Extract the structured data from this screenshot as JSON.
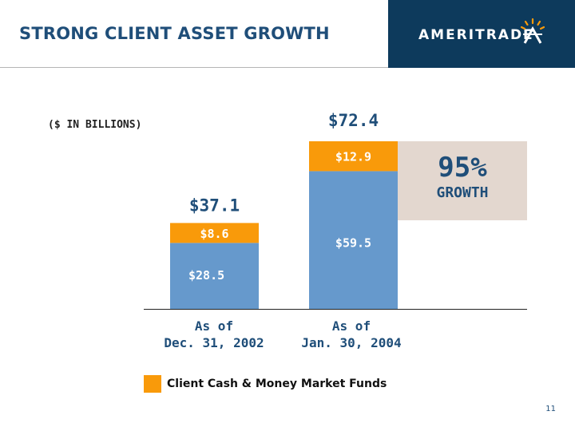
{
  "header": {
    "title": "STRONG CLIENT ASSET GROWTH",
    "logo_text": "AMERITRADE",
    "logo_color": "#0d3a5c"
  },
  "units_note": "($ IN BILLIONS)",
  "growth": {
    "value": "95%",
    "label": "GROWTH",
    "box_color": "#e3d7cf"
  },
  "legend": {
    "label": "Client Cash & Money Market Funds",
    "color": "#f99a0a"
  },
  "page_number": "11",
  "chart_data": {
    "type": "bar",
    "stacked": true,
    "categories": [
      "As of\nDec. 31, 2002",
      "As of\nJan. 30, 2004"
    ],
    "category_lines": [
      [
        "As of",
        "Dec. 31, 2002"
      ],
      [
        "As of",
        "Jan. 30, 2004"
      ]
    ],
    "totals": [
      37.1,
      72.4
    ],
    "total_labels": [
      "$37.1",
      "$72.4"
    ],
    "series": [
      {
        "values": [
          28.5,
          59.5
        ],
        "labels": [
          "$28.5",
          "$59.5"
        ],
        "color": "#6699cc"
      },
      {
        "name": "Client Cash & Money Market Funds",
        "values": [
          8.6,
          12.9
        ],
        "labels": [
          "$8.6",
          "$12.9"
        ],
        "color": "#f99a0a"
      }
    ],
    "ylim": [
      0,
      72.4
    ],
    "grid": false,
    "legend_position": "bottom"
  }
}
